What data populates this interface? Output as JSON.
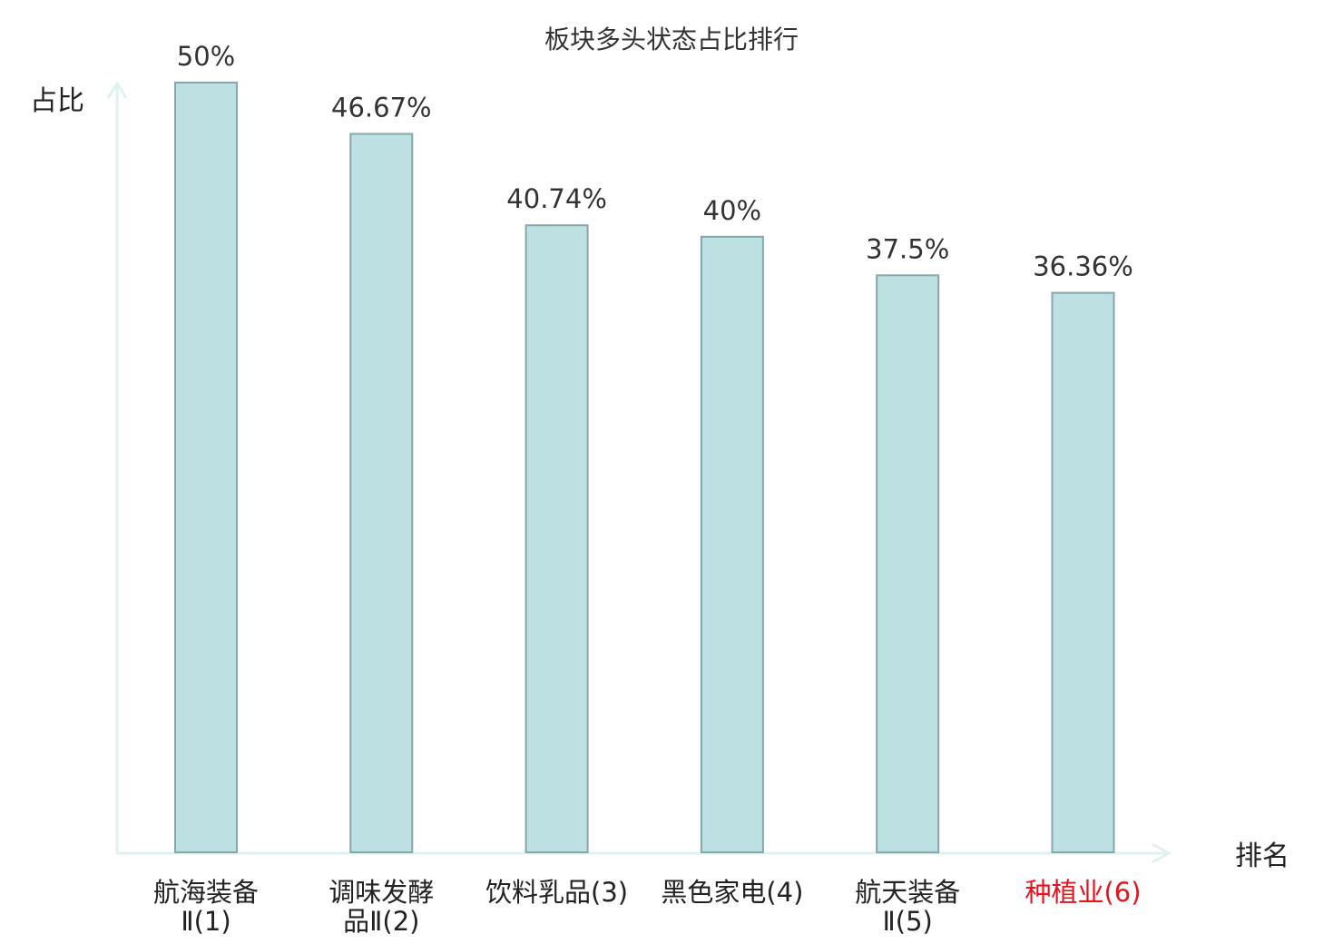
{
  "colors": {
    "bar_fill": "#bde0e2",
    "bar_stroke": "#86a7aa",
    "axis": "#e0f2ef",
    "highlight_label": "#e8121e",
    "text": "#333333"
  },
  "chart_data": {
    "type": "bar",
    "title": "板块多头状态占比排行",
    "xlabel": "排名",
    "ylabel": "占比",
    "categories": [
      [
        "航海装备",
        "Ⅱ(1)"
      ],
      [
        "调味发酵",
        "品Ⅱ(2)"
      ],
      [
        "饮料乳品(3)"
      ],
      [
        "黑色家电(4)"
      ],
      [
        "航天装备",
        "Ⅱ(5)"
      ],
      [
        "种植业(6)"
      ]
    ],
    "values": [
      50,
      46.67,
      40.74,
      40,
      37.5,
      36.36
    ],
    "value_labels": [
      "50%",
      "46.67%",
      "40.74%",
      "40%",
      "37.5%",
      "36.36%"
    ],
    "highlight_category_index": 5,
    "ylim": [
      0,
      50
    ],
    "grid": false,
    "legend": "none",
    "axis_arrows": true
  }
}
